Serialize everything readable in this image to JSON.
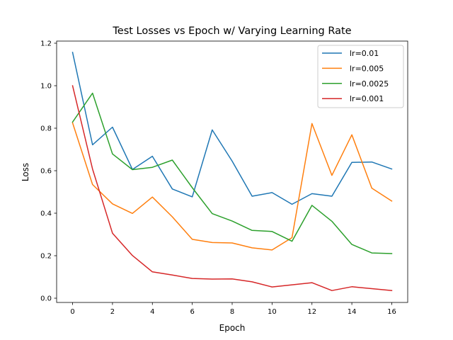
{
  "chart_data": {
    "type": "line",
    "title": "Test Losses vs Epoch w/ Varying Learning Rate",
    "xlabel": "Epoch",
    "ylabel": "Loss",
    "xlim": [
      -0.8,
      16.8
    ],
    "ylim": [
      -0.02,
      1.21
    ],
    "xticks": [
      0,
      2,
      4,
      6,
      8,
      10,
      12,
      14,
      16
    ],
    "yticks": [
      0.0,
      0.2,
      0.4,
      0.6,
      0.8,
      1.0,
      1.2
    ],
    "grid": false,
    "legend_position": "top-right",
    "x": [
      0,
      1,
      2,
      3,
      4,
      5,
      6,
      7,
      8,
      9,
      10,
      11,
      12,
      13,
      14,
      15,
      16
    ],
    "series": [
      {
        "name": "lr=0.01",
        "color": "#1f77b4",
        "values": [
          1.157,
          0.722,
          0.805,
          0.606,
          0.668,
          0.514,
          0.477,
          0.792,
          0.645,
          0.48,
          0.497,
          0.442,
          0.492,
          0.48,
          0.639,
          0.641,
          0.608
        ]
      },
      {
        "name": "lr=0.005",
        "color": "#ff7f0e",
        "values": [
          0.825,
          0.535,
          0.444,
          0.399,
          0.476,
          0.383,
          0.277,
          0.262,
          0.26,
          0.237,
          0.227,
          0.285,
          0.822,
          0.578,
          0.769,
          0.518,
          0.457
        ]
      },
      {
        "name": "lr=0.0025",
        "color": "#2ca02c",
        "values": [
          0.829,
          0.965,
          0.679,
          0.605,
          0.616,
          0.65,
          0.52,
          0.398,
          0.363,
          0.319,
          0.314,
          0.268,
          0.437,
          0.362,
          0.253,
          0.213,
          0.21
        ]
      },
      {
        "name": "lr=0.001",
        "color": "#d62728",
        "values": [
          1.0,
          0.608,
          0.306,
          0.201,
          0.124,
          0.109,
          0.093,
          0.09,
          0.091,
          0.077,
          0.053,
          0.063,
          0.073,
          0.036,
          0.054,
          0.045,
          0.036
        ]
      }
    ]
  }
}
